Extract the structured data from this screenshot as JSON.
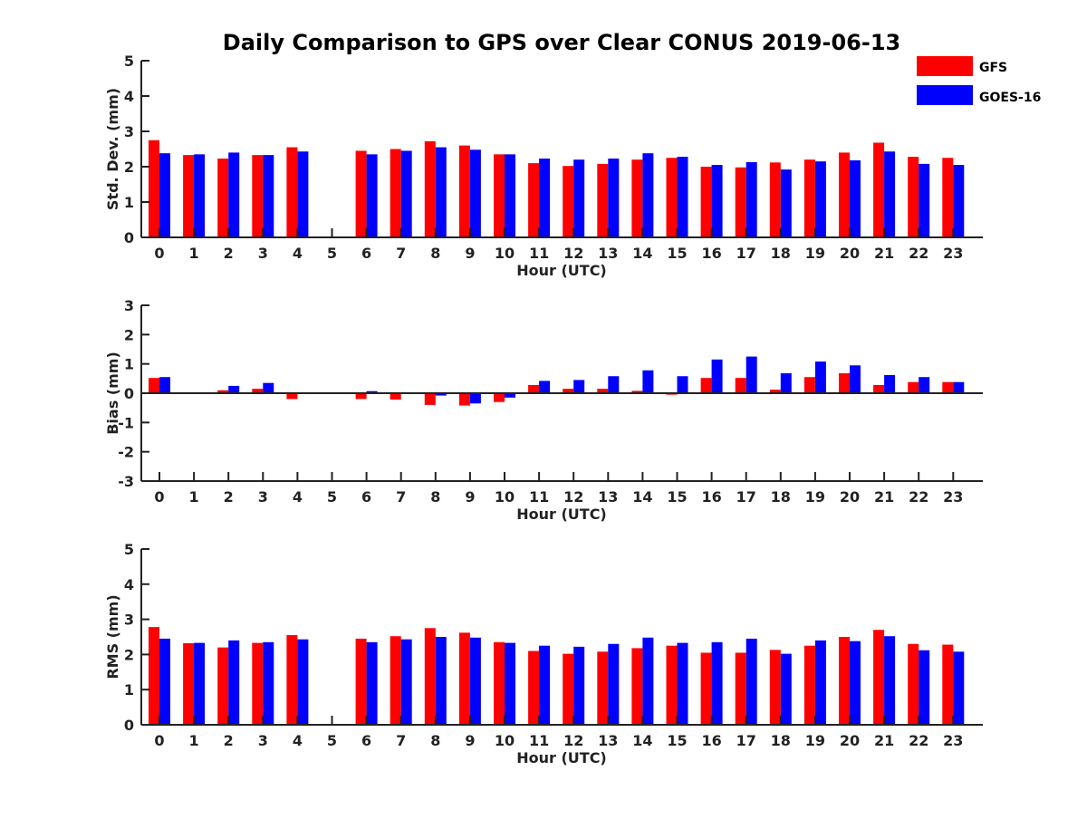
{
  "title": "Daily Comparison to GPS over Clear CONUS 2019-06-13",
  "colors": {
    "GFS": "#ff0000",
    "GOES-16": "#0000ff",
    "axis": "#222222"
  },
  "legend": [
    "GFS",
    "GOES-16"
  ],
  "chart_data": [
    {
      "type": "bar",
      "name": "std-dev",
      "xlabel": "Hour (UTC)",
      "ylabel": "Std. Dev. (mm)",
      "ylim": [
        0,
        5
      ],
      "yticks": [
        "0",
        "1",
        "2",
        "3",
        "4",
        "5"
      ],
      "categories": [
        "0",
        "1",
        "2",
        "3",
        "4",
        "5",
        "6",
        "7",
        "8",
        "9",
        "10",
        "11",
        "12",
        "13",
        "14",
        "15",
        "16",
        "17",
        "18",
        "19",
        "20",
        "21",
        "22",
        "23"
      ],
      "series": [
        {
          "name": "GFS",
          "values": [
            2.75,
            2.33,
            2.23,
            2.33,
            2.55,
            null,
            2.45,
            2.5,
            2.72,
            2.6,
            2.35,
            2.1,
            2.02,
            2.08,
            2.2,
            2.25,
            2.0,
            1.98,
            2.12,
            2.2,
            2.4,
            2.68,
            2.28,
            2.25
          ]
        },
        {
          "name": "GOES-16",
          "values": [
            2.38,
            2.35,
            2.4,
            2.33,
            2.43,
            null,
            2.35,
            2.45,
            2.55,
            2.48,
            2.35,
            2.23,
            2.2,
            2.23,
            2.38,
            2.28,
            2.05,
            2.13,
            1.92,
            2.15,
            2.18,
            2.43,
            2.08,
            2.05
          ]
        }
      ]
    },
    {
      "type": "bar",
      "name": "bias",
      "xlabel": "Hour (UTC)",
      "ylabel": "Bias (mm)",
      "ylim": [
        -3,
        3
      ],
      "yticks": [
        "-3",
        "-2",
        "-1",
        "0",
        "1",
        "2",
        "3"
      ],
      "categories": [
        "0",
        "1",
        "2",
        "3",
        "4",
        "5",
        "6",
        "7",
        "8",
        "9",
        "10",
        "11",
        "12",
        "13",
        "14",
        "15",
        "16",
        "17",
        "18",
        "19",
        "20",
        "21",
        "22",
        "23"
      ],
      "series": [
        {
          "name": "GFS",
          "values": [
            0.52,
            -0.02,
            0.1,
            0.15,
            -0.2,
            null,
            -0.2,
            -0.22,
            -0.4,
            -0.42,
            -0.3,
            0.28,
            0.15,
            0.15,
            0.08,
            -0.05,
            0.52,
            0.52,
            0.12,
            0.55,
            0.68,
            0.28,
            0.38,
            0.38
          ]
        },
        {
          "name": "GOES-16",
          "values": [
            0.55,
            -0.02,
            0.25,
            0.35,
            0.0,
            null,
            0.07,
            0.0,
            -0.08,
            -0.35,
            -0.15,
            0.42,
            0.45,
            0.58,
            0.78,
            0.58,
            1.15,
            1.25,
            0.68,
            1.08,
            0.95,
            0.62,
            0.55,
            0.38
          ]
        }
      ]
    },
    {
      "type": "bar",
      "name": "rms",
      "xlabel": "Hour (UTC)",
      "ylabel": "RMS (mm)",
      "ylim": [
        0,
        5
      ],
      "yticks": [
        "0",
        "1",
        "2",
        "3",
        "4",
        "5"
      ],
      "categories": [
        "0",
        "1",
        "2",
        "3",
        "4",
        "5",
        "6",
        "7",
        "8",
        "9",
        "10",
        "11",
        "12",
        "13",
        "14",
        "15",
        "16",
        "17",
        "18",
        "19",
        "20",
        "21",
        "22",
        "23"
      ],
      "series": [
        {
          "name": "GFS",
          "values": [
            2.78,
            2.32,
            2.2,
            2.33,
            2.55,
            null,
            2.45,
            2.52,
            2.75,
            2.62,
            2.35,
            2.1,
            2.02,
            2.08,
            2.18,
            2.25,
            2.05,
            2.05,
            2.13,
            2.25,
            2.5,
            2.7,
            2.3,
            2.28
          ]
        },
        {
          "name": "GOES-16",
          "values": [
            2.45,
            2.33,
            2.4,
            2.35,
            2.43,
            null,
            2.35,
            2.43,
            2.5,
            2.48,
            2.33,
            2.25,
            2.22,
            2.3,
            2.48,
            2.33,
            2.35,
            2.45,
            2.02,
            2.4,
            2.38,
            2.52,
            2.12,
            2.08
          ]
        }
      ]
    }
  ]
}
